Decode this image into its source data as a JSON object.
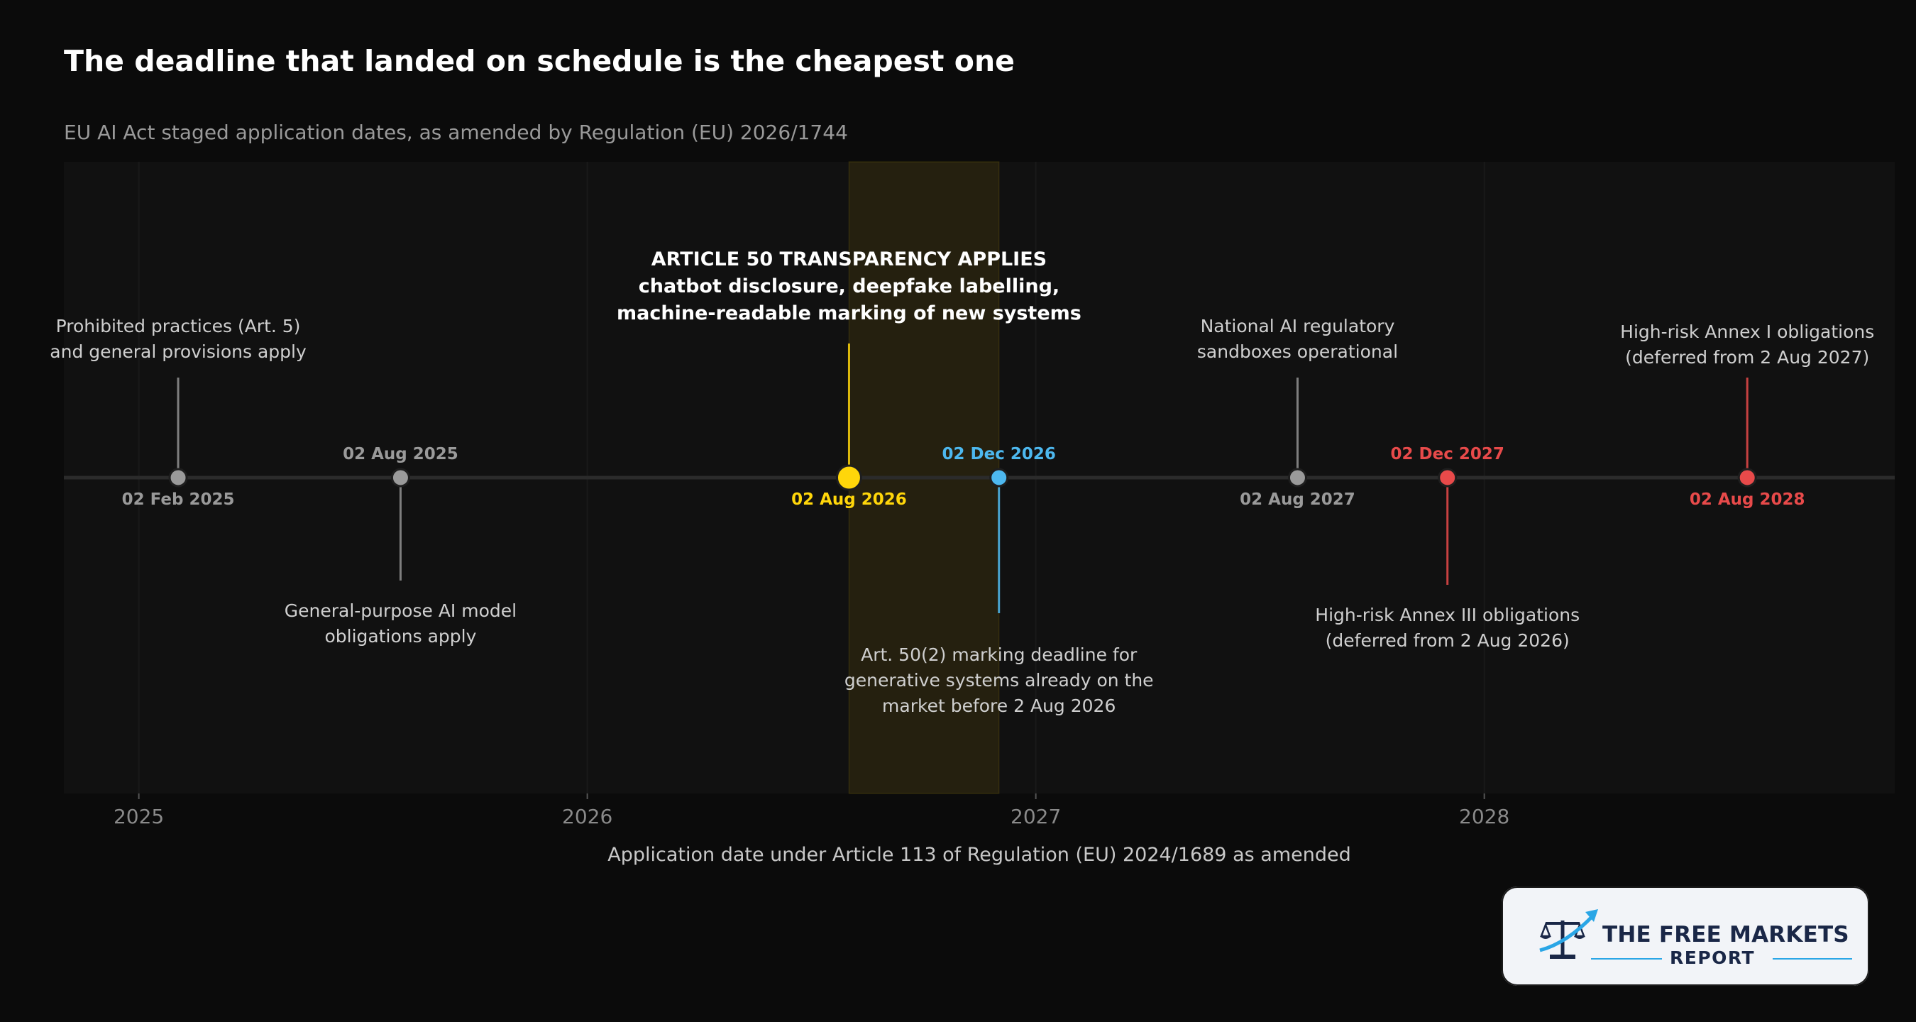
{
  "header": {
    "title": "The deadline that landed on schedule is the cheapest one",
    "subtitle": "EU AI Act staged application dates, as amended by Regulation (EU) 2026/1744"
  },
  "chart_data": {
    "type": "timeline",
    "xlabel": "Application date under Article 113 of Regulation (EU) 2024/1689 as amended",
    "x_axis": {
      "type": "date",
      "range": [
        "2024-11-01",
        "2028-11-30"
      ]
    },
    "x_ticks": [
      "2025",
      "2026",
      "2027",
      "2028"
    ],
    "highlight_band": {
      "start": "2026-08-02",
      "end": "2026-12-02",
      "color": "#f2c200"
    },
    "colors": {
      "past": "#9a9a9a",
      "key": "#ffd60a",
      "marking": "#4db8ef",
      "deferred": "#e84a4a"
    },
    "events": [
      {
        "date": "2025-02-02",
        "date_label": "02 Feb 2025",
        "date_label_side": "below",
        "category": "past",
        "annotation_side": "above",
        "annotation": [
          "Prohibited practices (Art. 5)",
          "and general provisions apply"
        ]
      },
      {
        "date": "2025-08-02",
        "date_label": "02 Aug 2025",
        "date_label_side": "above",
        "category": "past",
        "annotation_side": "below",
        "annotation": [
          "General-purpose AI model",
          "obligations apply"
        ]
      },
      {
        "date": "2026-08-02",
        "date_label": "02 Aug 2026",
        "date_label_side": "below",
        "category": "key",
        "annotation_side": "above",
        "emphasis": true,
        "annotation": [
          "ARTICLE 50 TRANSPARENCY APPLIES",
          "chatbot disclosure, deepfake labelling,",
          "machine-readable marking of new systems"
        ]
      },
      {
        "date": "2026-12-02",
        "date_label": "02 Dec 2026",
        "date_label_side": "above",
        "category": "marking",
        "annotation_side": "below",
        "annotation": [
          "Art. 50(2) marking deadline for",
          "generative systems already on the",
          "market before 2 Aug 2026"
        ]
      },
      {
        "date": "2027-08-02",
        "date_label": "02 Aug 2027",
        "date_label_side": "below",
        "category": "past",
        "annotation_side": "above",
        "annotation": [
          "National AI regulatory",
          "sandboxes operational"
        ]
      },
      {
        "date": "2027-12-02",
        "date_label": "02 Dec 2027",
        "date_label_side": "above",
        "category": "deferred",
        "annotation_side": "below",
        "annotation": [
          "High-risk Annex III obligations",
          "(deferred from 2 Aug 2026)"
        ]
      },
      {
        "date": "2028-08-02",
        "date_label": "02 Aug 2028",
        "date_label_side": "below",
        "category": "deferred",
        "annotation_side": "above",
        "annotation": [
          "High-risk Annex I obligations",
          "(deferred from 2 Aug 2027)"
        ]
      }
    ]
  },
  "logo": {
    "line1": "THE FREE MARKETS",
    "line2": "REPORT"
  }
}
